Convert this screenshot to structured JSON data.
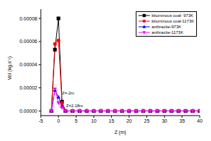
{
  "chart_data": {
    "type": "line",
    "x_label": "Z (m)",
    "y_label": "Vol (kg.s⁻¹)",
    "x": [
      -2,
      -1,
      0,
      1,
      2,
      4,
      6,
      8,
      10,
      12,
      14,
      16,
      18,
      20,
      22,
      24,
      26,
      28,
      30,
      32,
      34,
      36,
      38,
      40
    ],
    "series": [
      {
        "name": "bituminous coal- 973K",
        "color": "#000000",
        "marker": "square",
        "values": [
          0,
          5.3e-05,
          8e-05,
          8e-06,
          0,
          0,
          0,
          0,
          0,
          0,
          0,
          0,
          0,
          0,
          0,
          0,
          0,
          0,
          0,
          0,
          0,
          0,
          0,
          0
        ]
      },
      {
        "name": "bituminous coal-1173K",
        "color": "#ff0000",
        "marker": "circle",
        "values": [
          0,
          5.8e-05,
          6.1e-05,
          7e-06,
          0,
          0,
          0,
          0,
          0,
          0,
          0,
          0,
          0,
          0,
          0,
          0,
          0,
          0,
          0,
          0,
          0,
          0,
          0,
          0
        ]
      },
      {
        "name": "anthracite-973K",
        "color": "#0000ff",
        "marker": "triangle-up",
        "values": [
          0,
          1.8e-05,
          1.2e-05,
          4e-06,
          0,
          0,
          0,
          0,
          0,
          0,
          0,
          0,
          0,
          0,
          0,
          0,
          0,
          0,
          0,
          0,
          0,
          0,
          0,
          0
        ]
      },
      {
        "name": "anthracite-1173K",
        "color": "#ff00ff",
        "marker": "triangle-down",
        "values": [
          0,
          1.9e-05,
          7e-06,
          3e-06,
          0,
          0,
          0,
          0,
          0,
          0,
          0,
          0,
          0,
          0,
          0,
          0,
          0,
          0,
          0,
          0,
          0,
          0,
          0,
          0
        ]
      }
    ],
    "xlim": [
      -5,
      40
    ],
    "xticks": [
      -5,
      0,
      5,
      10,
      15,
      20,
      25,
      30,
      35,
      40
    ],
    "ylim": [
      -4e-06,
      8.8e-05
    ],
    "yticks": [
      {
        "value": 0,
        "label": "0.00000"
      },
      {
        "value": 2e-05,
        "label": "0.00002"
      },
      {
        "value": 4e-05,
        "label": "0.00004"
      },
      {
        "value": 6e-05,
        "label": "0.00006"
      },
      {
        "value": 8e-05,
        "label": "0.00008"
      }
    ],
    "annotations": [
      "Z=-2m",
      "Z=2.18m"
    ],
    "legend": "top-right"
  }
}
